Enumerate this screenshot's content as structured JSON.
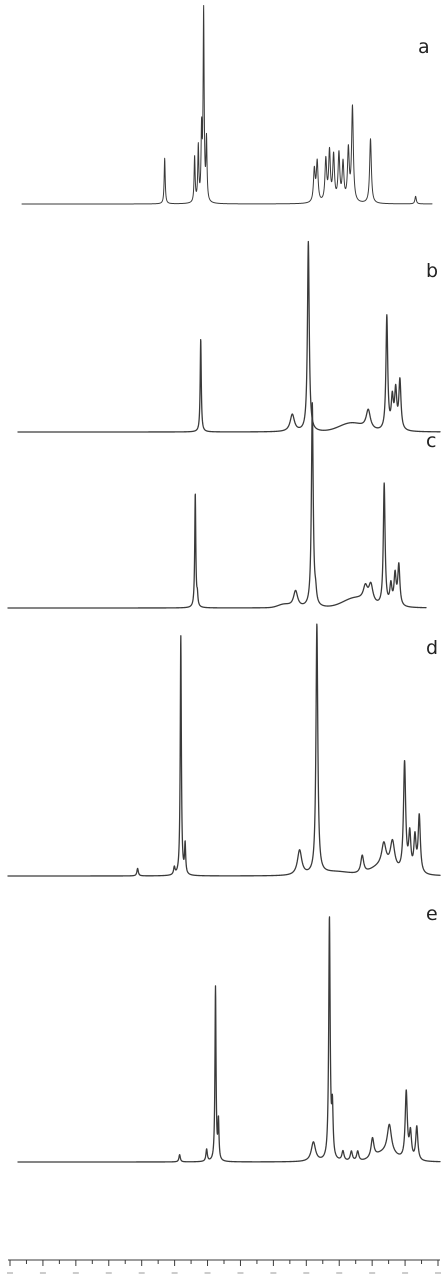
{
  "colors": {
    "trace": "#3a3a3a",
    "background": "#ffffff"
  },
  "chart_data": [
    {
      "type": "line",
      "label": "a",
      "xlim": [
        0,
        1
      ],
      "ylim": [
        0,
        1
      ],
      "peaks": [
        {
          "x": 0.348,
          "h": 0.24,
          "w": 0.0015
        },
        {
          "x": 0.421,
          "h": 0.24,
          "w": 0.0015
        },
        {
          "x": 0.43,
          "h": 0.29,
          "w": 0.0015
        },
        {
          "x": 0.438,
          "h": 0.36,
          "w": 0.0015
        },
        {
          "x": 0.443,
          "h": 1.0,
          "w": 0.0015
        },
        {
          "x": 0.45,
          "h": 0.32,
          "w": 0.0015
        },
        {
          "x": 0.713,
          "h": 0.17,
          "w": 0.0025
        },
        {
          "x": 0.72,
          "h": 0.21,
          "w": 0.0025
        },
        {
          "x": 0.741,
          "h": 0.22,
          "w": 0.0025
        },
        {
          "x": 0.75,
          "h": 0.26,
          "w": 0.0025
        },
        {
          "x": 0.76,
          "h": 0.24,
          "w": 0.0025
        },
        {
          "x": 0.773,
          "h": 0.25,
          "w": 0.0025
        },
        {
          "x": 0.783,
          "h": 0.2,
          "w": 0.0025
        },
        {
          "x": 0.796,
          "h": 0.27,
          "w": 0.0025
        },
        {
          "x": 0.806,
          "h": 0.5,
          "w": 0.0025
        },
        {
          "x": 0.85,
          "h": 0.34,
          "w": 0.0025
        },
        {
          "x": 0.96,
          "h": 0.04,
          "w": 0.002
        }
      ]
    },
    {
      "type": "line",
      "label": "b",
      "xlim": [
        0,
        1
      ],
      "ylim": [
        0,
        1
      ],
      "peaks": [
        {
          "x": 0.433,
          "h": 0.49,
          "w": 0.0015
        },
        {
          "x": 0.65,
          "h": 0.09,
          "w": 0.006
        },
        {
          "x": 0.688,
          "h": 1.0,
          "w": 0.0025
        },
        {
          "x": 0.83,
          "h": 0.1,
          "w": 0.006
        },
        {
          "x": 0.874,
          "h": 0.6,
          "w": 0.0025
        },
        {
          "x": 0.887,
          "h": 0.16,
          "w": 0.003
        },
        {
          "x": 0.895,
          "h": 0.2,
          "w": 0.003
        },
        {
          "x": 0.905,
          "h": 0.26,
          "w": 0.003
        }
      ],
      "bumps": [
        {
          "x": 0.79,
          "h": 0.045,
          "w": 0.04
        }
      ]
    },
    {
      "type": "line",
      "label": "c",
      "xlim": [
        0,
        1
      ],
      "ylim": [
        0,
        1
      ],
      "peaks": [
        {
          "x": 0.448,
          "h": 0.56,
          "w": 0.0015
        },
        {
          "x": 0.453,
          "h": 0.05,
          "w": 0.0015
        },
        {
          "x": 0.688,
          "h": 0.08,
          "w": 0.006
        },
        {
          "x": 0.728,
          "h": 1.0,
          "w": 0.0025
        },
        {
          "x": 0.736,
          "h": 0.05,
          "w": 0.0025
        },
        {
          "x": 0.855,
          "h": 0.07,
          "w": 0.006
        },
        {
          "x": 0.868,
          "h": 0.09,
          "w": 0.006
        },
        {
          "x": 0.9,
          "h": 0.6,
          "w": 0.0025
        },
        {
          "x": 0.916,
          "h": 0.1,
          "w": 0.003
        },
        {
          "x": 0.926,
          "h": 0.15,
          "w": 0.003
        },
        {
          "x": 0.935,
          "h": 0.2,
          "w": 0.003
        }
      ],
      "bumps": [
        {
          "x": 0.83,
          "h": 0.045,
          "w": 0.04
        },
        {
          "x": 0.66,
          "h": 0.015,
          "w": 0.02
        }
      ]
    },
    {
      "type": "line",
      "label": "d",
      "xlim": [
        0,
        1
      ],
      "ylim": [
        0,
        1
      ],
      "peaks": [
        {
          "x": 0.3,
          "h": 0.03,
          "w": 0.002
        },
        {
          "x": 0.385,
          "h": 0.03,
          "w": 0.002
        },
        {
          "x": 0.4,
          "h": 0.96,
          "w": 0.0015
        },
        {
          "x": 0.41,
          "h": 0.12,
          "w": 0.0015
        },
        {
          "x": 0.675,
          "h": 0.1,
          "w": 0.006
        },
        {
          "x": 0.715,
          "h": 1.0,
          "w": 0.0025
        },
        {
          "x": 0.82,
          "h": 0.07,
          "w": 0.004
        },
        {
          "x": 0.87,
          "h": 0.09,
          "w": 0.006
        },
        {
          "x": 0.89,
          "h": 0.11,
          "w": 0.006
        },
        {
          "x": 0.918,
          "h": 0.44,
          "w": 0.003
        },
        {
          "x": 0.93,
          "h": 0.15,
          "w": 0.003
        },
        {
          "x": 0.942,
          "h": 0.14,
          "w": 0.003
        },
        {
          "x": 0.952,
          "h": 0.23,
          "w": 0.003
        }
      ],
      "bumps": [
        {
          "x": 0.76,
          "h": 0.015,
          "w": 0.05
        },
        {
          "x": 0.865,
          "h": 0.035,
          "w": 0.035
        }
      ]
    },
    {
      "type": "line",
      "label": "e",
      "xlim": [
        0,
        1
      ],
      "ylim": [
        0,
        1
      ],
      "peaks": [
        {
          "x": 0.383,
          "h": 0.03,
          "w": 0.002
        },
        {
          "x": 0.447,
          "h": 0.05,
          "w": 0.002
        },
        {
          "x": 0.468,
          "h": 0.72,
          "w": 0.0015
        },
        {
          "x": 0.475,
          "h": 0.16,
          "w": 0.0015
        },
        {
          "x": 0.7,
          "h": 0.08,
          "w": 0.006
        },
        {
          "x": 0.738,
          "h": 1.0,
          "w": 0.002
        },
        {
          "x": 0.745,
          "h": 0.2,
          "w": 0.002
        },
        {
          "x": 0.77,
          "h": 0.04,
          "w": 0.003
        },
        {
          "x": 0.79,
          "h": 0.04,
          "w": 0.003
        },
        {
          "x": 0.805,
          "h": 0.04,
          "w": 0.003
        },
        {
          "x": 0.84,
          "h": 0.08,
          "w": 0.004
        },
        {
          "x": 0.88,
          "h": 0.12,
          "w": 0.006
        },
        {
          "x": 0.92,
          "h": 0.28,
          "w": 0.003
        },
        {
          "x": 0.93,
          "h": 0.11,
          "w": 0.003
        },
        {
          "x": 0.945,
          "h": 0.14,
          "w": 0.003
        }
      ],
      "bumps": [
        {
          "x": 0.87,
          "h": 0.035,
          "w": 0.035
        }
      ]
    }
  ],
  "axis": {
    "tick_count": 27,
    "tick_labels": []
  }
}
